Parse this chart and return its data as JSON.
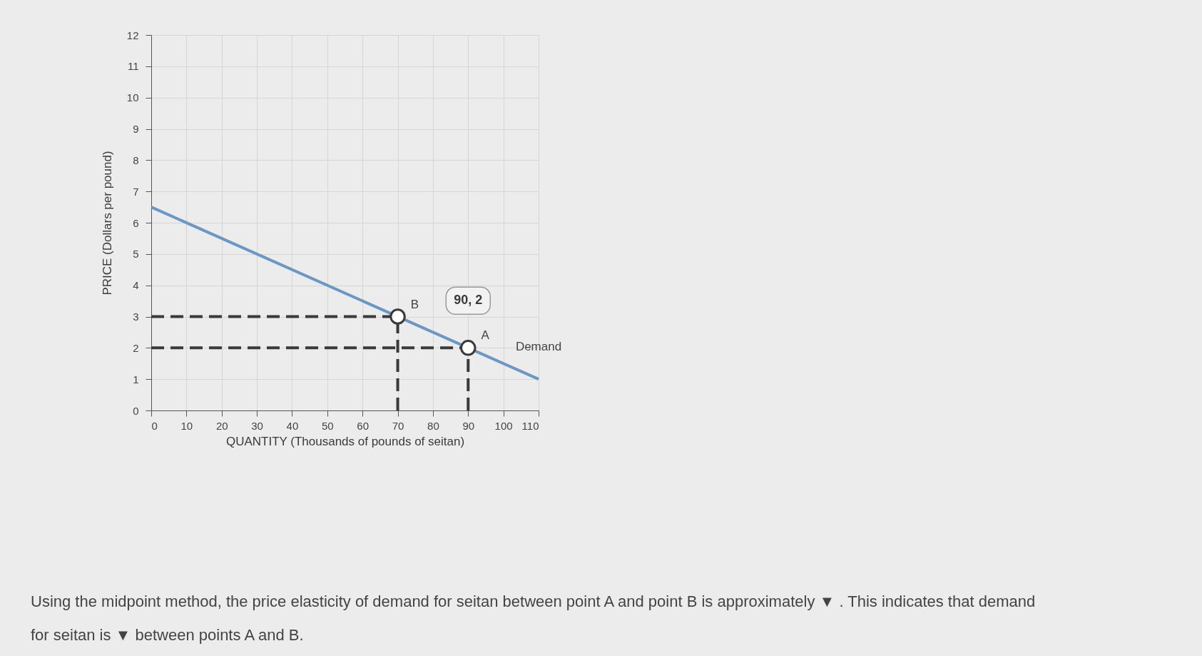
{
  "chart_data": {
    "type": "line",
    "xlabel": "QUANTITY (Thousands of pounds of seitan)",
    "ylabel": "PRICE (Dollars per pound)",
    "xlim": [
      0,
      110
    ],
    "ylim": [
      0,
      12
    ],
    "xticks": [
      0,
      10,
      20,
      30,
      40,
      50,
      60,
      70,
      80,
      90,
      100,
      110
    ],
    "yticks": [
      0,
      1,
      2,
      3,
      4,
      5,
      6,
      7,
      8,
      9,
      10,
      11,
      12
    ],
    "grid": true,
    "series": [
      {
        "line_style": "dashed",
        "color": "#3a3a3a",
        "x": [
          0,
          70
        ],
        "values": [
          3,
          3
        ]
      },
      {
        "line_style": "dashed",
        "color": "#3a3a3a",
        "x": [
          70,
          70
        ],
        "values": [
          0,
          3
        ]
      },
      {
        "line_style": "dashed",
        "color": "#3a3a3a",
        "x": [
          0,
          90
        ],
        "values": [
          2,
          2
        ]
      },
      {
        "line_style": "dashed",
        "color": "#3a3a3a",
        "x": [
          90,
          90
        ],
        "values": [
          0,
          2
        ]
      },
      {
        "name": "Demand",
        "line_style": "solid",
        "color": "#6b97c5",
        "x": [
          0,
          110
        ],
        "values": [
          6.5,
          1
        ]
      },
      {
        "type": "scatter",
        "marker": "circle",
        "color": "#3a3a3a",
        "x": [
          70,
          90
        ],
        "values": [
          3,
          2
        ],
        "value_labels": [
          null,
          "90, 2"
        ]
      }
    ],
    "annotations": [
      {
        "text": "B",
        "x": 70,
        "y": 3
      },
      {
        "text": "A",
        "x": 90,
        "y": 2
      },
      "Using the midpoint method, the price elasticity of demand for seitan between point A and point B is approximately ▼ . This indicates that demand for seitan is ▼ between points A and B."
    ]
  }
}
